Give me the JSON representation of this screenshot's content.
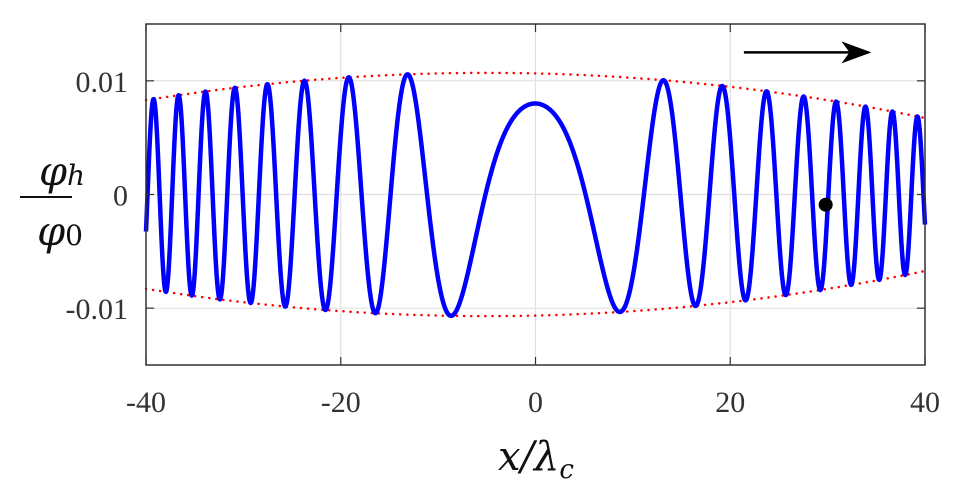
{
  "chart_data": {
    "type": "line",
    "title": "",
    "xlabel": "x/λ_c",
    "ylabel": "φ_h/φ_0",
    "xlim": [
      -40,
      40
    ],
    "ylim": [
      -0.015,
      0.015
    ],
    "xticks": [
      -40,
      -20,
      0,
      20,
      40
    ],
    "xtick_labels": [
      "-40",
      "-20",
      "0",
      "20",
      "40"
    ],
    "yticks": [
      -0.01,
      0,
      0.01
    ],
    "ytick_labels": [
      "-0.01",
      "0",
      "0.01"
    ],
    "grid": true,
    "legend": null,
    "series": [
      {
        "name": "phi_h",
        "style": "solid",
        "color": "#0000ff",
        "description": "symmetric chirped oscillation: frequency increasing with |x|",
        "model": "A(x)*cos(0.0322*x^2 + 0.72)",
        "center_value": 0.0075,
        "peaks_x": [
          -38.9,
          -36.5,
          -33.8,
          -30.8,
          -27.7,
          -23.9,
          -19.5,
          -13.3,
          0,
          13.3,
          19.3,
          23.9,
          27.7,
          30.5,
          33.0,
          35.3,
          37.6,
          39.8
        ],
        "troughs_x": [
          -8.8,
          8.8
        ]
      },
      {
        "name": "upper envelope",
        "style": "dotted",
        "color": "#ff0000",
        "x": [
          -40,
          -30,
          -20,
          -10,
          -5,
          0,
          10,
          20,
          30,
          40
        ],
        "values": [
          0.0083,
          0.0095,
          0.0103,
          0.0106,
          0.0107,
          0.0106,
          0.0103,
          0.0095,
          0.0084,
          0.0069
        ]
      },
      {
        "name": "lower envelope",
        "style": "dotted",
        "color": "#ff0000",
        "x": [
          -40,
          -30,
          -20,
          -10,
          -5,
          0,
          10,
          20,
          30,
          40
        ],
        "values": [
          -0.0083,
          -0.0095,
          -0.0103,
          -0.0106,
          -0.0107,
          -0.0106,
          -0.0103,
          -0.0095,
          -0.0084,
          -0.0069
        ]
      }
    ],
    "annotations": [
      {
        "type": "point",
        "x": 29.8,
        "y": -0.0009,
        "color": "#000000"
      },
      {
        "type": "arrow",
        "direction": "right",
        "from_x": 21.4,
        "to_x": 34.5,
        "y": 0.0125,
        "color": "#000000"
      }
    ]
  },
  "labels": {
    "x_axis": "x/λ",
    "x_sub": "c",
    "y_num": "φ",
    "y_num_sub": "h",
    "y_den": "φ",
    "y_den_sub": "0"
  }
}
